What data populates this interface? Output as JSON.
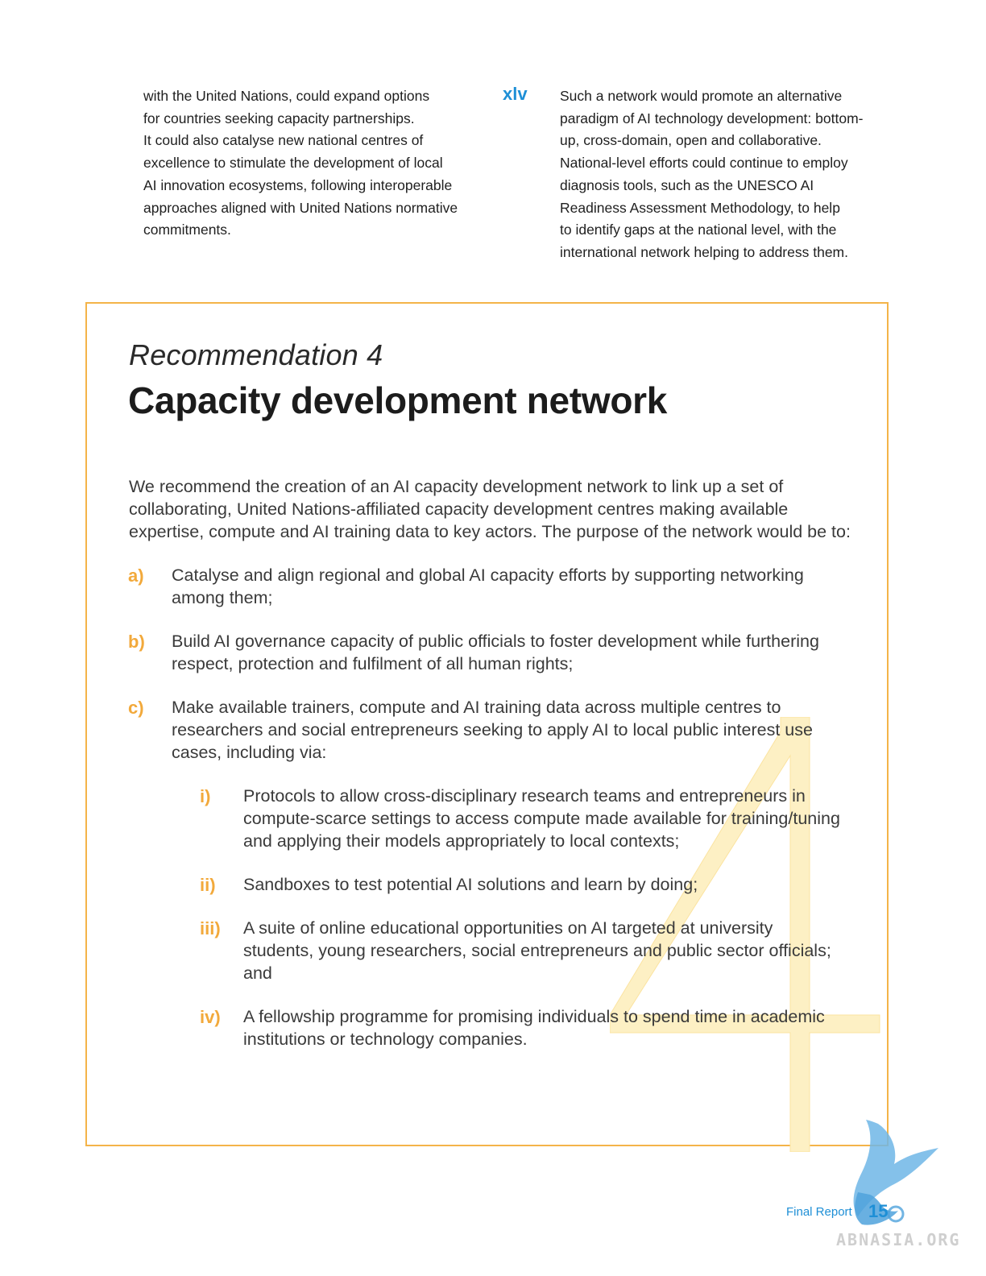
{
  "left_column": {
    "lines": [
      "with the United Nations, could expand options",
      "for countries seeking capacity partnerships.",
      "It could also catalyse new national centres of",
      "excellence to stimulate the development of local",
      "AI innovation ecosystems, following interoperable",
      "approaches aligned with United Nations normative",
      "commitments."
    ]
  },
  "roman_marker": "xlv",
  "right_column": {
    "lines": [
      "Such a network would promote an alternative",
      "paradigm of AI technology development: bottom-",
      "up, cross-domain, open and collaborative.",
      "National-level efforts could continue to employ",
      "diagnosis tools, such as the UNESCO AI",
      "Readiness Assessment Methodology, to help",
      "to identify gaps at the national level, with the",
      "international network helping to address them."
    ]
  },
  "recommendation": {
    "label": "Recommendation 4",
    "title": "Capacity development network",
    "big_number": "4",
    "intro_lines": [
      "We recommend the creation of an AI capacity development network to link up a set of",
      "collaborating, United Nations-affiliated capacity development centres making available",
      "expertise, compute and AI training data to key actors. The purpose of the network would be to:"
    ],
    "items": [
      {
        "marker": "a)",
        "lines": [
          "Catalyse and align regional and global AI capacity efforts by supporting networking",
          "among them;"
        ]
      },
      {
        "marker": "b)",
        "lines": [
          "Build AI governance capacity of public officials to foster development while furthering",
          "respect, protection and fulfilment of all human rights;"
        ]
      },
      {
        "marker": "c)",
        "lines": [
          "Make available trainers, compute and AI training data across multiple centres to",
          "researchers and social entrepreneurs seeking to apply AI to local public interest use",
          "cases, including via:"
        ]
      }
    ],
    "subitems": [
      {
        "marker": "i)",
        "lines": [
          "Protocols to allow cross-disciplinary research teams and entrepreneurs in",
          "compute-scarce settings to access compute made available for training/tuning",
          "and applying their models appropriately to local contexts;"
        ]
      },
      {
        "marker": "ii)",
        "lines": [
          "Sandboxes to test potential AI solutions and learn by doing;"
        ]
      },
      {
        "marker": "iii)",
        "lines": [
          "A suite of online educational opportunities on AI targeted at university",
          "students, young researchers, social entrepreneurs and public sector officials;",
          "and"
        ]
      },
      {
        "marker": "iv)",
        "lines": [
          "A fellowship programme for promising individuals to spend time in academic",
          "institutions or technology companies."
        ]
      }
    ]
  },
  "footer": {
    "label": "Final Report",
    "page_number": "15"
  },
  "watermark": {
    "text": "ABNASIA.ORG",
    "icon": "eagle-icon"
  },
  "colors": {
    "accent_orange": "#f2a93b",
    "accent_blue": "#1e8fd6",
    "box_border": "#f4b449",
    "big_number_fill": "#fdf0c4"
  }
}
